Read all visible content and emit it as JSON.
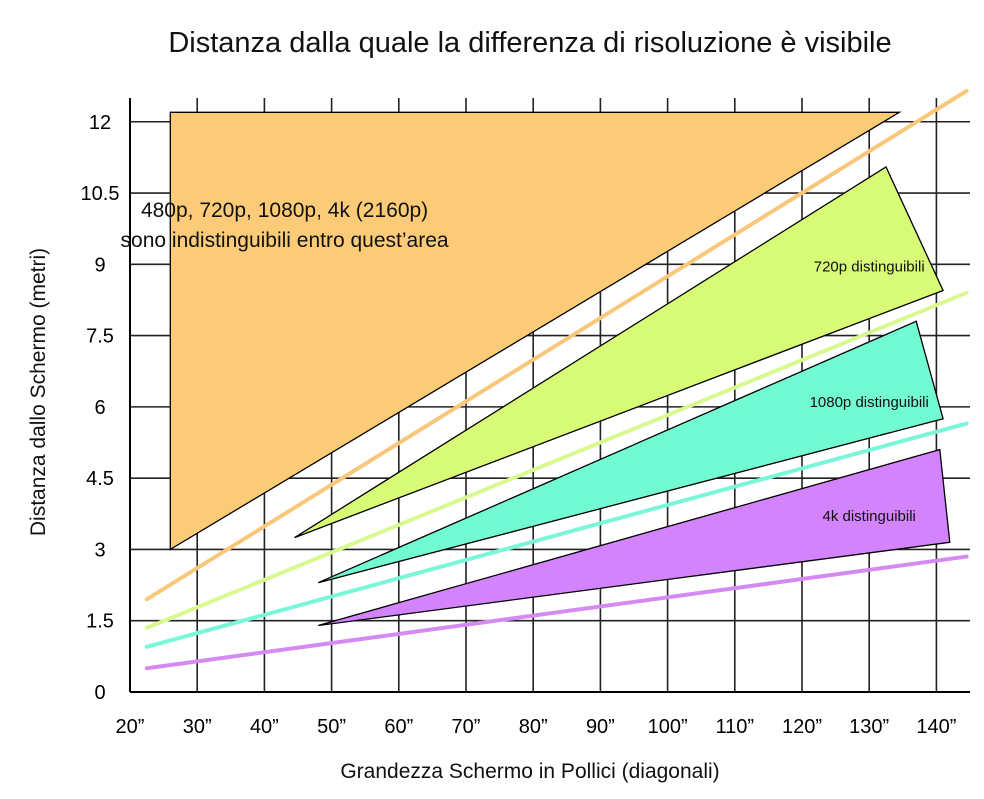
{
  "chart_data": {
    "type": "area",
    "title": "Distanza dalla quale la differenza di risoluzione è visibile",
    "xlabel": "Grandezza Schermo in Pollici (diagonali)",
    "ylabel": "Distanza dallo Schermo (metri)",
    "xlim": [
      20,
      145
    ],
    "ylim": [
      0,
      12.5
    ],
    "x_ticks": [
      20,
      30,
      40,
      50,
      60,
      70,
      80,
      90,
      100,
      110,
      120,
      130,
      140
    ],
    "x_tick_labels": [
      "20”",
      "30”",
      "40”",
      "50”",
      "60”",
      "70”",
      "80”",
      "90”",
      "100”",
      "110”",
      "120”",
      "130”",
      "140”"
    ],
    "y_ticks": [
      0,
      1.5,
      3,
      4.5,
      6,
      7.5,
      9,
      10.5,
      12
    ],
    "y_tick_labels": [
      "0",
      "1.5",
      "3",
      "4.5",
      "6",
      "7.5",
      "9",
      "10.5",
      "12"
    ],
    "grid": true,
    "regions": [
      {
        "label_lines": [
          "480p, 720p, 1080p, 4k (2160p)",
          "sono indistinguibili entro quest’area"
        ],
        "color": "#FCCB77",
        "points": [
          [
            26,
            12.2
          ],
          [
            134.5,
            12.2
          ],
          [
            26,
            3.0
          ]
        ],
        "label_at": [
          43,
          10.0
        ],
        "label_size": "large"
      },
      {
        "label_lines": [
          "720p distinguibili"
        ],
        "color": "#D7FB77",
        "points": [
          [
            44.5,
            3.25
          ],
          [
            132.5,
            11.05
          ],
          [
            141,
            8.45
          ]
        ],
        "label_at": [
          130,
          8.85
        ],
        "label_size": "small"
      },
      {
        "label_lines": [
          "1080p distinguibili"
        ],
        "color": "#72FAD3",
        "points": [
          [
            48,
            2.3
          ],
          [
            137,
            7.8
          ],
          [
            141,
            5.75
          ]
        ],
        "label_at": [
          130,
          6.0
        ],
        "label_size": "small"
      },
      {
        "label_lines": [
          "4k distinguibili"
        ],
        "color": "#D383FB",
        "points": [
          [
            48,
            1.4
          ],
          [
            140.5,
            5.1
          ],
          [
            142,
            3.15
          ]
        ],
        "label_at": [
          130,
          3.6
        ],
        "label_size": "small"
      }
    ],
    "lines": [
      {
        "color": "#F9C77A",
        "points": [
          [
            22.5,
            1.95
          ],
          [
            144.5,
            12.65
          ]
        ]
      },
      {
        "color": "#D8F890",
        "points": [
          [
            22.5,
            1.35
          ],
          [
            144.5,
            8.4
          ]
        ]
      },
      {
        "color": "#7AF6D8",
        "points": [
          [
            22.5,
            0.95
          ],
          [
            144.5,
            5.65
          ]
        ]
      },
      {
        "color": "#D58AF2",
        "points": [
          [
            22.5,
            0.5
          ],
          [
            144.5,
            2.85
          ]
        ]
      }
    ]
  }
}
